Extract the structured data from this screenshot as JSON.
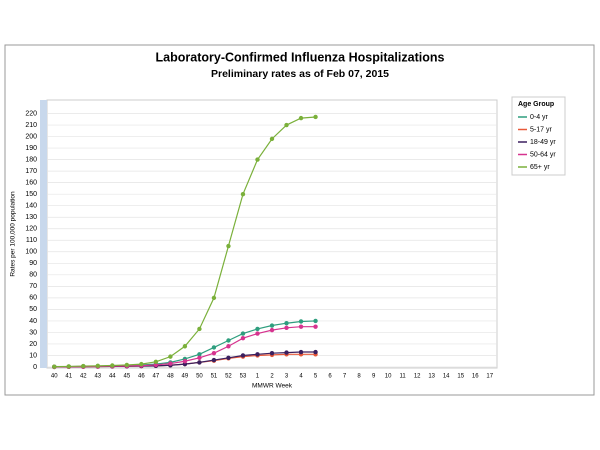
{
  "chart_data": {
    "type": "line",
    "title": "Laboratory-Confirmed Influenza Hospitalizations",
    "subtitle": "Preliminary rates as of Feb 07, 2015",
    "x_label": "MMWR Week",
    "y_label": "Rates per 100,000 population",
    "legend_title": "Age Group",
    "legend_position": "right",
    "grid": true,
    "categories": [
      "40",
      "41",
      "42",
      "43",
      "44",
      "45",
      "46",
      "47",
      "48",
      "49",
      "50",
      "51",
      "52",
      "53",
      "1",
      "2",
      "3",
      "4",
      "5",
      "6",
      "7",
      "8",
      "9",
      "10",
      "11",
      "12",
      "13",
      "14",
      "15",
      "16",
      "17"
    ],
    "ylim": [
      0,
      230
    ],
    "yticks": [
      0,
      10,
      20,
      30,
      40,
      50,
      60,
      70,
      80,
      90,
      100,
      110,
      120,
      130,
      140,
      150,
      160,
      170,
      180,
      190,
      200,
      210,
      220
    ],
    "series": [
      {
        "name": "0-4 yr",
        "color": "#2e9e7e",
        "values": [
          0.2,
          0.4,
          0.6,
          0.8,
          1,
          1.3,
          1.8,
          2.5,
          4,
          7,
          11,
          17,
          23,
          29,
          33,
          36,
          38,
          39.5,
          40,
          null,
          null,
          null,
          null,
          null,
          null,
          null,
          null,
          null,
          null,
          null,
          null
        ]
      },
      {
        "name": "5-17 yr",
        "color": "#e8593a",
        "values": [
          0.1,
          0.2,
          0.3,
          0.4,
          0.5,
          0.6,
          0.8,
          1,
          1.5,
          2.5,
          4,
          5.5,
          7.5,
          9,
          10,
          10.5,
          11,
          11,
          11,
          null,
          null,
          null,
          null,
          null,
          null,
          null,
          null,
          null,
          null,
          null,
          null
        ]
      },
      {
        "name": "18-49 yr",
        "color": "#3a1f5f",
        "values": [
          0.1,
          0.2,
          0.3,
          0.4,
          0.5,
          0.6,
          0.8,
          1,
          1.5,
          2.5,
          4,
          6,
          8,
          10,
          11,
          12,
          12.5,
          13,
          13,
          null,
          null,
          null,
          null,
          null,
          null,
          null,
          null,
          null,
          null,
          null,
          null
        ]
      },
      {
        "name": "50-64 yr",
        "color": "#d6338f",
        "values": [
          0.1,
          0.2,
          0.3,
          0.5,
          0.7,
          0.9,
          1.2,
          1.8,
          3,
          5,
          8,
          12,
          18,
          25,
          29,
          32,
          34,
          35,
          35,
          null,
          null,
          null,
          null,
          null,
          null,
          null,
          null,
          null,
          null,
          null,
          null
        ]
      },
      {
        "name": "65+ yr",
        "color": "#7ab03a",
        "values": [
          0.3,
          0.5,
          0.8,
          1,
          1.3,
          1.8,
          2.5,
          4.5,
          9,
          18,
          33,
          60,
          105,
          150,
          180,
          198,
          210,
          216,
          217,
          null,
          null,
          null,
          null,
          null,
          null,
          null,
          null,
          null,
          null,
          null,
          null
        ]
      }
    ]
  }
}
